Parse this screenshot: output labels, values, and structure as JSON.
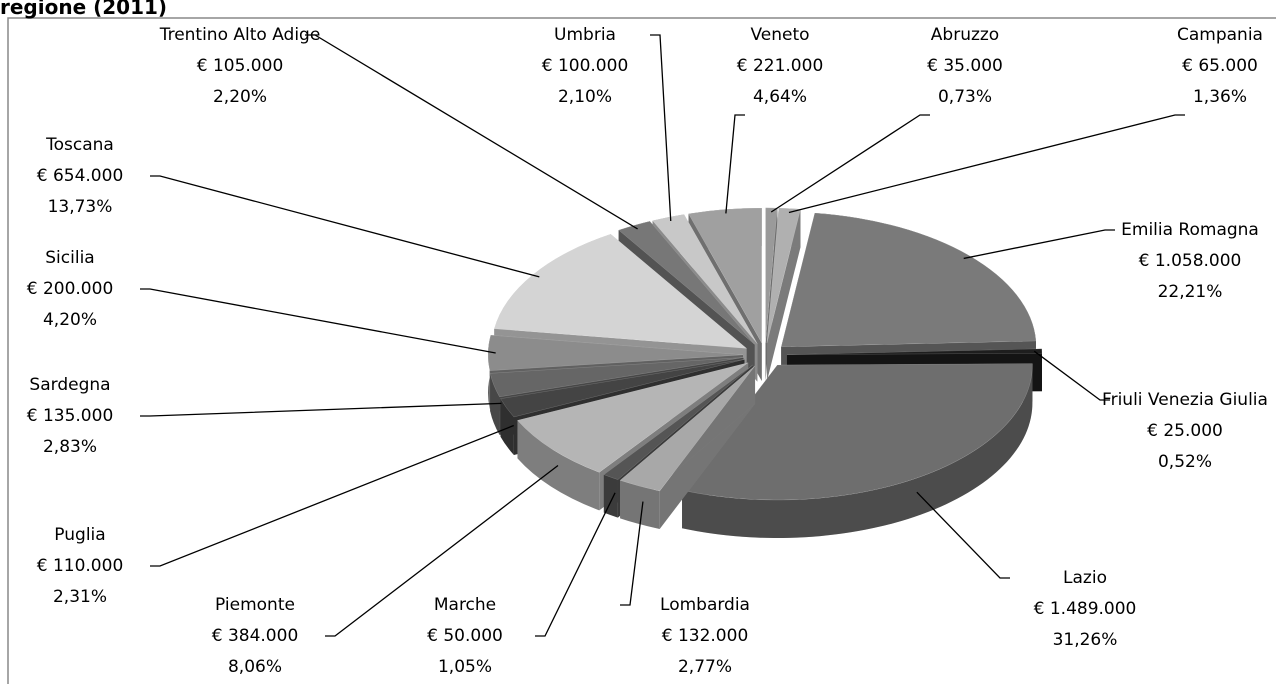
{
  "chart_data": {
    "type": "pie",
    "title": "regione (2011)",
    "categories": [
      "Abruzzo",
      "Campania",
      "Emilia Romagna",
      "Friuli Venezia Giulia",
      "Lazio",
      "Lombardia",
      "Marche",
      "Piemonte",
      "Puglia",
      "Sardegna",
      "Sicilia",
      "Toscana",
      "Trentino Alto Adige",
      "Umbria",
      "Veneto"
    ],
    "values": [
      35000,
      65000,
      1058000,
      25000,
      1489000,
      132000,
      50000,
      384000,
      110000,
      135000,
      200000,
      654000,
      105000,
      100000,
      221000
    ],
    "value_labels": [
      "€ 35.000",
      "€ 65.000",
      "€ 1.058.000",
      "€ 25.000",
      "€ 1.489.000",
      "€ 132.000",
      "€ 50.000",
      "€ 384.000",
      "€ 110.000",
      "€ 135.000",
      "€ 200.000",
      "€ 654.000",
      "€ 105.000",
      "€ 100.000",
      "€ 221.000"
    ],
    "percentages": [
      0.73,
      1.36,
      22.21,
      0.52,
      31.26,
      2.77,
      1.05,
      8.06,
      2.31,
      2.83,
      4.2,
      13.73,
      2.2,
      2.1,
      4.64
    ],
    "percentage_labels": [
      "0,73%",
      "1,36%",
      "22,21%",
      "0,52%",
      "31,26%",
      "2,77%",
      "1,05%",
      "8,06%",
      "2,31%",
      "2,83%",
      "4,20%",
      "13,73%",
      "2,20%",
      "2,10%",
      "4,64%"
    ],
    "colors": [
      "#9a9a9a",
      "#b0b0b0",
      "#7a7a7a",
      "#1e1e1e",
      "#6e6e6e",
      "#a8a8a8",
      "#555555",
      "#b5b5b5",
      "#444444",
      "#666666",
      "#8c8c8c",
      "#d4d4d4",
      "#777777",
      "#c8c8c8",
      "#a0a0a0"
    ]
  }
}
